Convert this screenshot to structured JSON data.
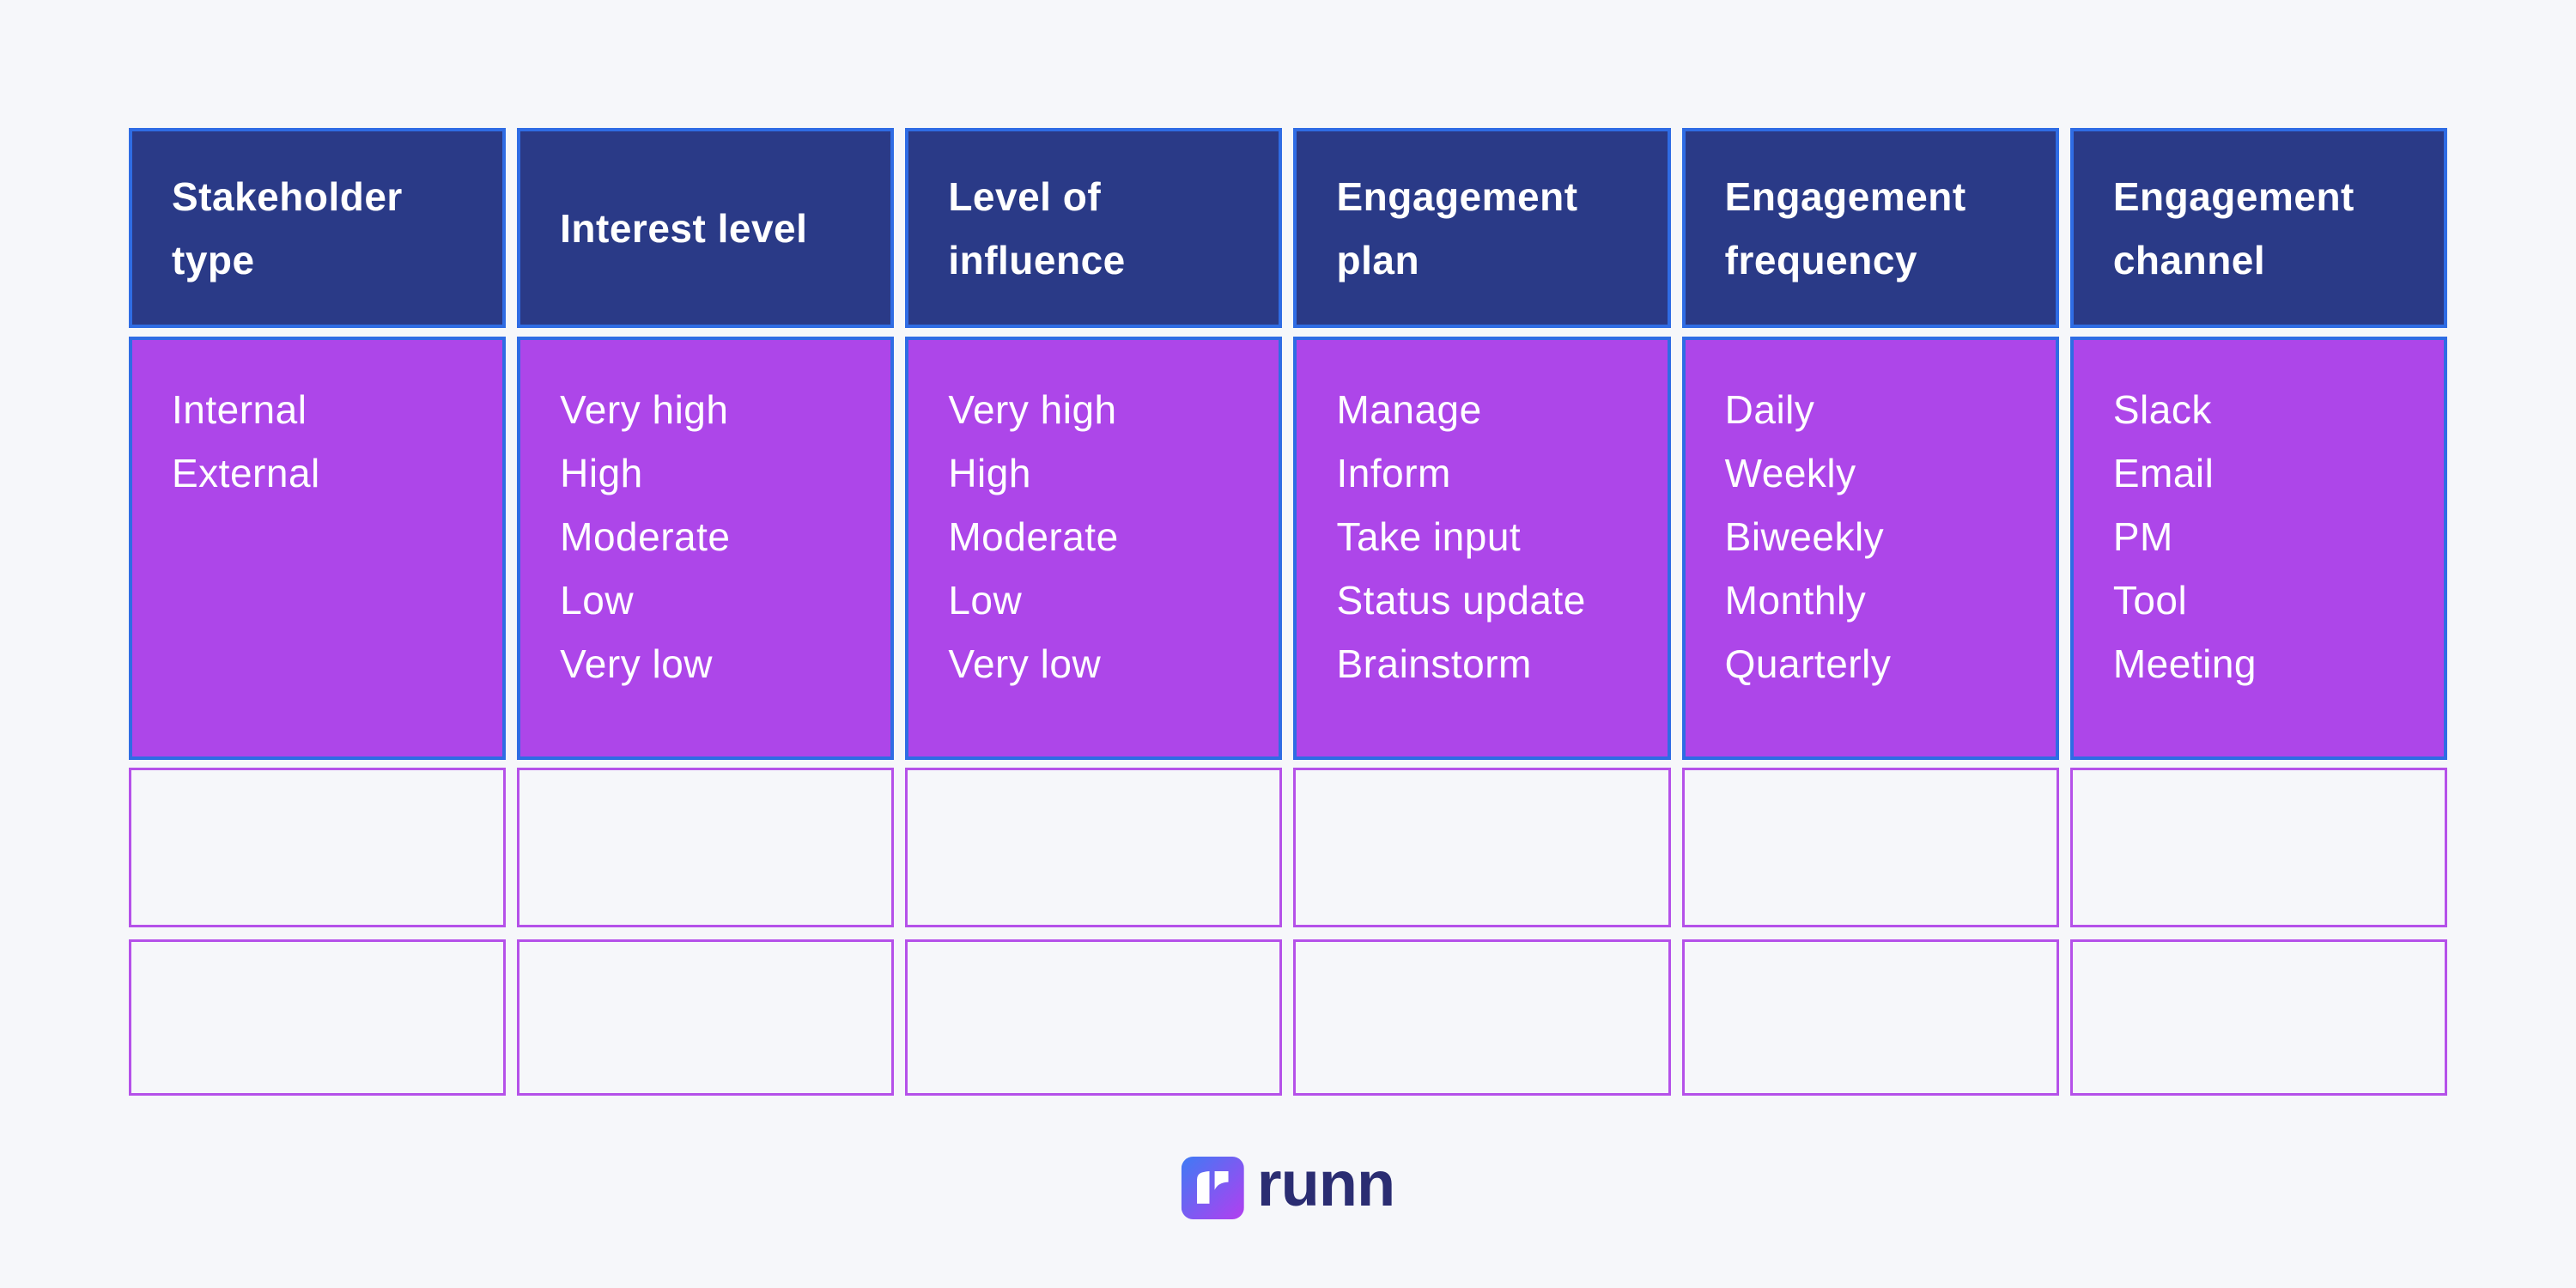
{
  "chart_data": {
    "type": "table",
    "columns": [
      "Stakeholder type",
      "Interest level",
      "Level of influence",
      "Engagement plan",
      "Engagement frequency",
      "Engagement channel"
    ],
    "options": [
      [
        "Internal",
        "External"
      ],
      [
        "Very high",
        "High",
        "Moderate",
        "Low",
        "Very low"
      ],
      [
        "Very high",
        "High",
        "Moderate",
        "Low",
        "Very low"
      ],
      [
        "Manage",
        "Inform",
        "Take input",
        "Status update",
        "Brainstorm"
      ],
      [
        "Daily",
        "Weekly",
        "Biweekly",
        "Monthly",
        "Quarterly"
      ],
      [
        "Slack",
        "Email",
        "PM",
        "Tool",
        "Meeting"
      ]
    ],
    "empty_row_count": 2,
    "legend_position": "none",
    "grid": "off"
  },
  "colors": {
    "background": "#f6f7fa",
    "header_fill": "#2a3a87",
    "blue_border": "#2f6ce4",
    "option_fill": "#ad46e9",
    "empty_border": "#b551e9",
    "text": "#ffffff",
    "logo_text": "#2b2d72",
    "logo_gradient_start": "#3e7bf4",
    "logo_gradient_end": "#b33ef0"
  },
  "logo": {
    "text": "runn",
    "icon": "runn-logo-icon"
  }
}
